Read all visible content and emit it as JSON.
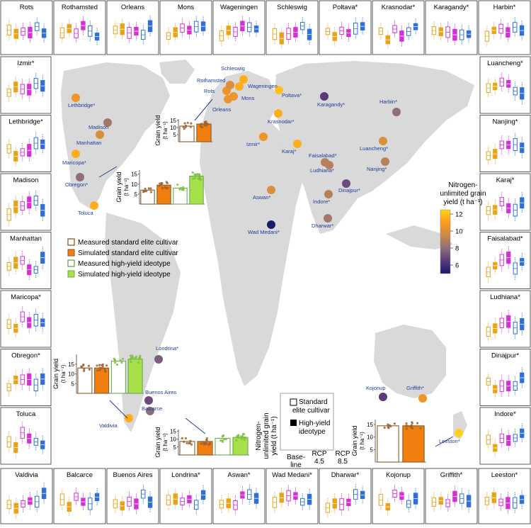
{
  "legend_treatments": {
    "measured_standard": "Measured standard elite cultivar",
    "simulated_standard": "Simulated standard elite cultivar",
    "measured_ideotype": "Measured high-yield ideotype",
    "simulated_ideotype": "Simulated high-yield ideotype"
  },
  "legend_scenarios": {
    "standard_line1": "Standard",
    "standard_line2": "elite cultivar",
    "ideotype_line1": "High-yield",
    "ideotype_line2": "ideotype",
    "ylabel_line1": "Nitrogen-",
    "ylabel_line2": "unlimited grain",
    "ylabel_line3": "yield (t ha⁻¹)",
    "x_baseline_line1": "Base-",
    "x_baseline_line2": "line",
    "x_rcp45_line1": "RCP",
    "x_rcp45_line2": "4.5",
    "x_rcp85_line1": "RCP",
    "x_rcp85_line2": "8.5"
  },
  "colorbar": {
    "title_line1": "Nitrogen-",
    "title_line2": "unlimited grain",
    "title_line3": "yield (t ha⁻¹)",
    "ticks": [
      "12",
      "10",
      "8",
      "6"
    ],
    "min": 5,
    "max": 12.5,
    "stops": [
      "#ffd21f",
      "#ff9a1a",
      "#c98a4a",
      "#8e6e7d",
      "#5a3a7a",
      "#1a1a6e"
    ]
  },
  "colors": {
    "standard": "#e8a317",
    "ideotype": "#d62fd6",
    "ideotype_alt": "#2f6fd6",
    "measured_standard": "#8b5a2b",
    "simulated_standard": "#f07f0f",
    "measured_ideotype": "#6aa84f",
    "simulated_ideotype": "#a8e04a",
    "land": "#d9d9d9",
    "ocean": "#ffffff",
    "label": "#1f3d99"
  },
  "chart_data": {
    "type": "map",
    "sites": [
      {
        "name": "Rots",
        "yield": 10.5
      },
      {
        "name": "Rothamsted",
        "yield": 10.0
      },
      {
        "name": "Orleans",
        "yield": 10.5
      },
      {
        "name": "Mons",
        "yield": 10.5
      },
      {
        "name": "Wageningen",
        "yield": 11.5
      },
      {
        "name": "Schleswig",
        "yield": 11.5
      },
      {
        "name": "Poltava*",
        "yield": 12.0
      },
      {
        "name": "Krasnodar*",
        "yield": 11.5
      },
      {
        "name": "Karagandy*",
        "yield": 6.5
      },
      {
        "name": "Harbin*",
        "yield": 8.0
      },
      {
        "name": "Izmir*",
        "yield": 10.5
      },
      {
        "name": "Karaj*",
        "yield": 11.5
      },
      {
        "name": "Faisalabad*",
        "yield": 9.0
      },
      {
        "name": "Ludhiana*",
        "yield": 9.0
      },
      {
        "name": "Dinajpur*",
        "yield": 7.0
      },
      {
        "name": "Indore*",
        "yield": 9.0
      },
      {
        "name": "Dharwar*",
        "yield": 8.5
      },
      {
        "name": "Luancheng*",
        "yield": 10.0
      },
      {
        "name": "Nanjing*",
        "yield": 9.0
      },
      {
        "name": "Lethbridge*",
        "yield": 10.5
      },
      {
        "name": "Madison",
        "yield": 8.5
      },
      {
        "name": "Manhattan",
        "yield": 10.0
      },
      {
        "name": "Maricopa*",
        "yield": 11.5
      },
      {
        "name": "Obregon*",
        "yield": 8.0
      },
      {
        "name": "Toluca",
        "yield": 11.5
      },
      {
        "name": "Aswan*",
        "yield": 10.0
      },
      {
        "name": "Wad Medani*",
        "yield": 5.0
      },
      {
        "name": "Londrina*",
        "yield": 7.5
      },
      {
        "name": "Buenos Aires",
        "yield": 7.0
      },
      {
        "name": "Balcarce",
        "yield": 8.0
      },
      {
        "name": "Valdivia",
        "yield": 11.5
      },
      {
        "name": "Kojonup",
        "yield": 6.5
      },
      {
        "name": "Griffith*",
        "yield": 10.5
      },
      {
        "name": "Leeston*",
        "yield": 12.5
      }
    ],
    "panels": {
      "top": [
        "Rots",
        "Rothamsted",
        "Orleans",
        "Mons",
        "Wageningen",
        "Schleswig",
        "Poltava*",
        "Krasnodar*",
        "Karagandy*",
        "Harbin*"
      ],
      "left": [
        "Izmir*",
        "Lethbridge*",
        "Madison",
        "Manhattan",
        "Maricopa*",
        "Obregon*",
        "Toluca"
      ],
      "right": [
        "Luancheng*",
        "Nanjing*",
        "Karaj*",
        "Faisalabad*",
        "Ludhiana*",
        "Dinajpur*",
        "Indore*"
      ],
      "bottom": [
        "Valdivia",
        "Balcarce",
        "Buenos Aires",
        "Londrina*",
        "Aswan*",
        "Wad Medani*",
        "Dharwar*",
        "Kojonup",
        "Griffith*",
        "Leeston*"
      ]
    },
    "insets": [
      {
        "ylabel": "Grain yield",
        "unit": "(t ha⁻¹)",
        "yticks": [
          "5",
          "10",
          "15"
        ],
        "ymax": 16,
        "values": [
          11.0,
          12.5
        ]
      },
      {
        "ylabel": "Grain yield",
        "unit": "(t ha⁻¹)",
        "yticks": [
          "5",
          "10",
          "15"
        ],
        "ymax": 17,
        "values": [
          7.0,
          9.5,
          8.0,
          14.0
        ]
      },
      {
        "ylabel": "Grain yield",
        "unit": "(t ha⁻¹)",
        "yticks": [
          "5",
          "10",
          "15"
        ],
        "ymax": 20,
        "values": [
          13.0,
          13.0,
          16.5,
          17.5
        ]
      },
      {
        "ylabel": "Grain yield",
        "unit": "(t ha⁻¹)",
        "yticks": [
          "5",
          "10",
          "15"
        ],
        "ymax": 16,
        "values": [
          8.5,
          8.5,
          10.5,
          11.0
        ]
      },
      {
        "ylabel": "Grain yield",
        "unit": "(t ha⁻¹)",
        "yticks": [
          "5",
          "10",
          "15"
        ],
        "ymax": 17,
        "values": [
          14.5,
          14.5
        ]
      }
    ]
  }
}
